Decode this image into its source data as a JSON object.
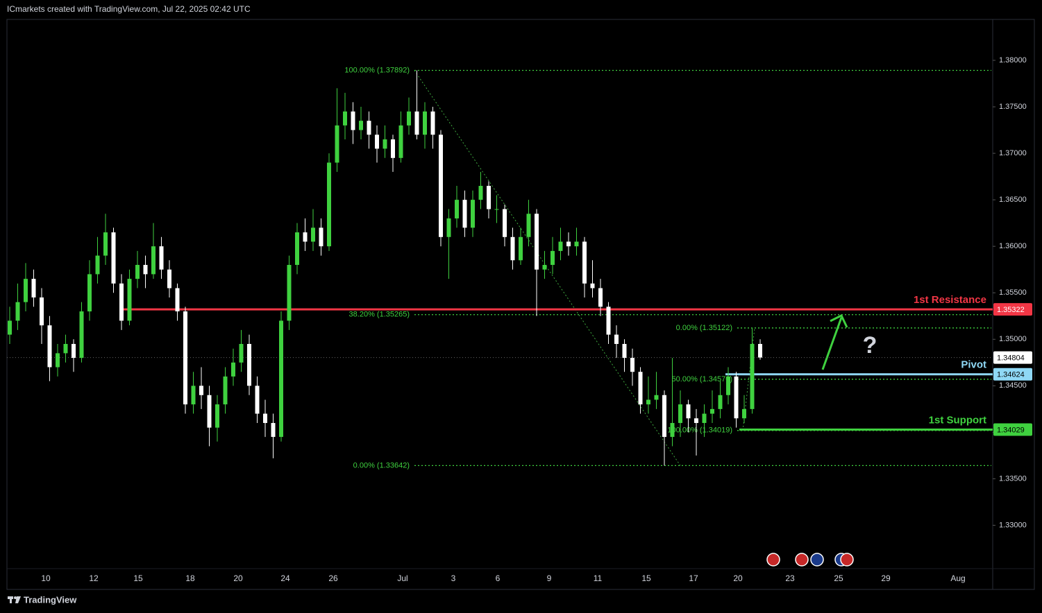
{
  "header": "ICmarkets created with TradingView.com, Jul 22, 2025 02:42 UTC",
  "footer": "TradingView",
  "chart_data": {
    "type": "candlestick",
    "up_color": "#3fd13f",
    "down_color": "#ffffff",
    "ylim": [
      1.3231,
      1.3844
    ],
    "yticks": [
      {
        "value": 1.33,
        "label": "1.33000"
      },
      {
        "value": 1.335,
        "label": "1.33500"
      },
      {
        "value": 1.34,
        "label": "1.34000"
      },
      {
        "value": 1.345,
        "label": "1.34500"
      },
      {
        "value": 1.35,
        "label": "1.35000"
      },
      {
        "value": 1.355,
        "label": "1.35500"
      },
      {
        "value": 1.36,
        "label": "1.36000"
      },
      {
        "value": 1.365,
        "label": "1.36500"
      },
      {
        "value": 1.37,
        "label": "1.37000"
      },
      {
        "value": 1.375,
        "label": "1.37500"
      },
      {
        "value": 1.38,
        "label": "1.38000"
      }
    ],
    "xticks": [
      "10",
      "12",
      "15",
      "18",
      "20",
      "24",
      "26",
      "Jul",
      "3",
      "6",
      "9",
      "11",
      "15",
      "17",
      "20",
      "23",
      "25",
      "29",
      "Aug"
    ],
    "ohlc": [
      [
        1.3505,
        1.3535,
        1.3495,
        1.352
      ],
      [
        1.352,
        1.356,
        1.351,
        1.354
      ],
      [
        1.354,
        1.3582,
        1.353,
        1.3565
      ],
      [
        1.3565,
        1.3575,
        1.3535,
        1.3545
      ],
      [
        1.3545,
        1.3555,
        1.3495,
        1.3515
      ],
      [
        1.3515,
        1.3525,
        1.3455,
        1.347
      ],
      [
        1.347,
        1.3495,
        1.346,
        1.3485
      ],
      [
        1.3485,
        1.3505,
        1.3475,
        1.3495
      ],
      [
        1.3495,
        1.35,
        1.3465,
        1.348
      ],
      [
        1.348,
        1.354,
        1.3475,
        1.353
      ],
      [
        1.353,
        1.3585,
        1.352,
        1.357
      ],
      [
        1.357,
        1.361,
        1.356,
        1.359
      ],
      [
        1.359,
        1.3635,
        1.358,
        1.3615
      ],
      [
        1.3615,
        1.362,
        1.355,
        1.356
      ],
      [
        1.356,
        1.357,
        1.351,
        1.352
      ],
      [
        1.352,
        1.3575,
        1.3515,
        1.3565
      ],
      [
        1.3565,
        1.3595,
        1.3555,
        1.358
      ],
      [
        1.358,
        1.359,
        1.3555,
        1.357
      ],
      [
        1.357,
        1.3625,
        1.3565,
        1.36
      ],
      [
        1.36,
        1.361,
        1.3565,
        1.3575
      ],
      [
        1.3575,
        1.3585,
        1.3545,
        1.3555
      ],
      [
        1.3555,
        1.356,
        1.352,
        1.353
      ],
      [
        1.353,
        1.3535,
        1.342,
        1.343
      ],
      [
        1.343,
        1.3465,
        1.342,
        1.345
      ],
      [
        1.345,
        1.347,
        1.3425,
        1.344
      ],
      [
        1.344,
        1.345,
        1.3385,
        1.3405
      ],
      [
        1.3405,
        1.344,
        1.339,
        1.343
      ],
      [
        1.343,
        1.347,
        1.342,
        1.346
      ],
      [
        1.346,
        1.349,
        1.345,
        1.3475
      ],
      [
        1.3475,
        1.351,
        1.3465,
        1.3495
      ],
      [
        1.3495,
        1.3505,
        1.344,
        1.345
      ],
      [
        1.345,
        1.346,
        1.341,
        1.342
      ],
      [
        1.342,
        1.3435,
        1.3395,
        1.341
      ],
      [
        1.341,
        1.342,
        1.3372,
        1.3395
      ],
      [
        1.3395,
        1.353,
        1.339,
        1.352
      ],
      [
        1.352,
        1.359,
        1.351,
        1.358
      ],
      [
        1.358,
        1.3625,
        1.357,
        1.3615
      ],
      [
        1.3615,
        1.363,
        1.3595,
        1.3605
      ],
      [
        1.3605,
        1.364,
        1.3595,
        1.362
      ],
      [
        1.362,
        1.363,
        1.359,
        1.36
      ],
      [
        1.36,
        1.37,
        1.3595,
        1.369
      ],
      [
        1.369,
        1.377,
        1.368,
        1.373
      ],
      [
        1.373,
        1.3765,
        1.3715,
        1.3745
      ],
      [
        1.3745,
        1.3755,
        1.371,
        1.3725
      ],
      [
        1.3725,
        1.375,
        1.3715,
        1.3735
      ],
      [
        1.3735,
        1.3745,
        1.3705,
        1.372
      ],
      [
        1.372,
        1.373,
        1.369,
        1.3705
      ],
      [
        1.3705,
        1.373,
        1.3695,
        1.3715
      ],
      [
        1.3715,
        1.372,
        1.368,
        1.3695
      ],
      [
        1.3695,
        1.3745,
        1.369,
        1.373
      ],
      [
        1.373,
        1.376,
        1.372,
        1.3745
      ],
      [
        1.3745,
        1.37892,
        1.3715,
        1.372
      ],
      [
        1.372,
        1.3755,
        1.3705,
        1.3745
      ],
      [
        1.3745,
        1.375,
        1.3705,
        1.372
      ],
      [
        1.372,
        1.3725,
        1.36,
        1.361
      ],
      [
        1.361,
        1.364,
        1.3565,
        1.363
      ],
      [
        1.363,
        1.3665,
        1.362,
        1.365
      ],
      [
        1.365,
        1.366,
        1.361,
        1.362
      ],
      [
        1.362,
        1.366,
        1.361,
        1.365
      ],
      [
        1.365,
        1.368,
        1.364,
        1.3665
      ],
      [
        1.3665,
        1.367,
        1.363,
        1.364
      ],
      [
        1.364,
        1.3655,
        1.3625,
        1.364
      ],
      [
        1.364,
        1.3645,
        1.36,
        1.361
      ],
      [
        1.361,
        1.362,
        1.3575,
        1.3585
      ],
      [
        1.3585,
        1.362,
        1.358,
        1.361
      ],
      [
        1.361,
        1.365,
        1.36,
        1.3635
      ],
      [
        1.3635,
        1.364,
        1.3525,
        1.3575
      ],
      [
        1.3575,
        1.3595,
        1.3565,
        1.358
      ],
      [
        1.358,
        1.361,
        1.357,
        1.3595
      ],
      [
        1.3595,
        1.362,
        1.3585,
        1.3605
      ],
      [
        1.3605,
        1.3615,
        1.359,
        1.36
      ],
      [
        1.36,
        1.362,
        1.359,
        1.3605
      ],
      [
        1.3605,
        1.361,
        1.3545,
        1.356
      ],
      [
        1.356,
        1.3585,
        1.3545,
        1.3555
      ],
      [
        1.3555,
        1.3565,
        1.3525,
        1.3535
      ],
      [
        1.3535,
        1.354,
        1.3495,
        1.3505
      ],
      [
        1.3505,
        1.3515,
        1.348,
        1.3495
      ],
      [
        1.3495,
        1.35,
        1.3465,
        1.348
      ],
      [
        1.348,
        1.349,
        1.345,
        1.3465
      ],
      [
        1.3465,
        1.347,
        1.342,
        1.343
      ],
      [
        1.343,
        1.346,
        1.342,
        1.3435
      ],
      [
        1.3435,
        1.3465,
        1.3425,
        1.344
      ],
      [
        1.344,
        1.3445,
        1.33642,
        1.3395
      ],
      [
        1.3395,
        1.348,
        1.3385,
        1.341
      ],
      [
        1.341,
        1.3445,
        1.3395,
        1.343
      ],
      [
        1.343,
        1.3435,
        1.34,
        1.3415
      ],
      [
        1.3415,
        1.3425,
        1.3375,
        1.341
      ],
      [
        1.341,
        1.343,
        1.3395,
        1.342
      ],
      [
        1.342,
        1.3445,
        1.341,
        1.3425
      ],
      [
        1.3425,
        1.3455,
        1.3415,
        1.344
      ],
      [
        1.344,
        1.347,
        1.343,
        1.346
      ],
      [
        1.346,
        1.3465,
        1.3405,
        1.3415
      ],
      [
        1.3415,
        1.344,
        1.341,
        1.3425
      ],
      [
        1.3425,
        1.35122,
        1.342,
        1.3495
      ],
      [
        1.3495,
        1.35,
        1.3478,
        1.34804
      ]
    ],
    "fibs": [
      {
        "levels": [
          {
            "label": "100.00% (1.37892)",
            "value": 1.37892
          },
          {
            "label": "38.20% (1.35265)",
            "value": 1.35265
          },
          {
            "label": "0.00% (1.33642)",
            "value": 1.33642
          }
        ]
      },
      {
        "levels": [
          {
            "label": "0.00% (1.35122)",
            "value": 1.35122
          },
          {
            "label": "50.00% (1.34570)",
            "value": 1.3457
          },
          {
            "label": "100.00% (1.34019)",
            "value": 1.34019
          }
        ]
      }
    ],
    "levels": [
      {
        "name": "1st Resistance",
        "value": 1.35322,
        "color": "#f23645"
      },
      {
        "name": "Pivot",
        "value": 1.34624,
        "color": "#8fd8f5"
      },
      {
        "name": "1st Support",
        "value": 1.34029,
        "color": "#3fd13f"
      }
    ],
    "last_price": 1.34804,
    "annotation": "?"
  }
}
